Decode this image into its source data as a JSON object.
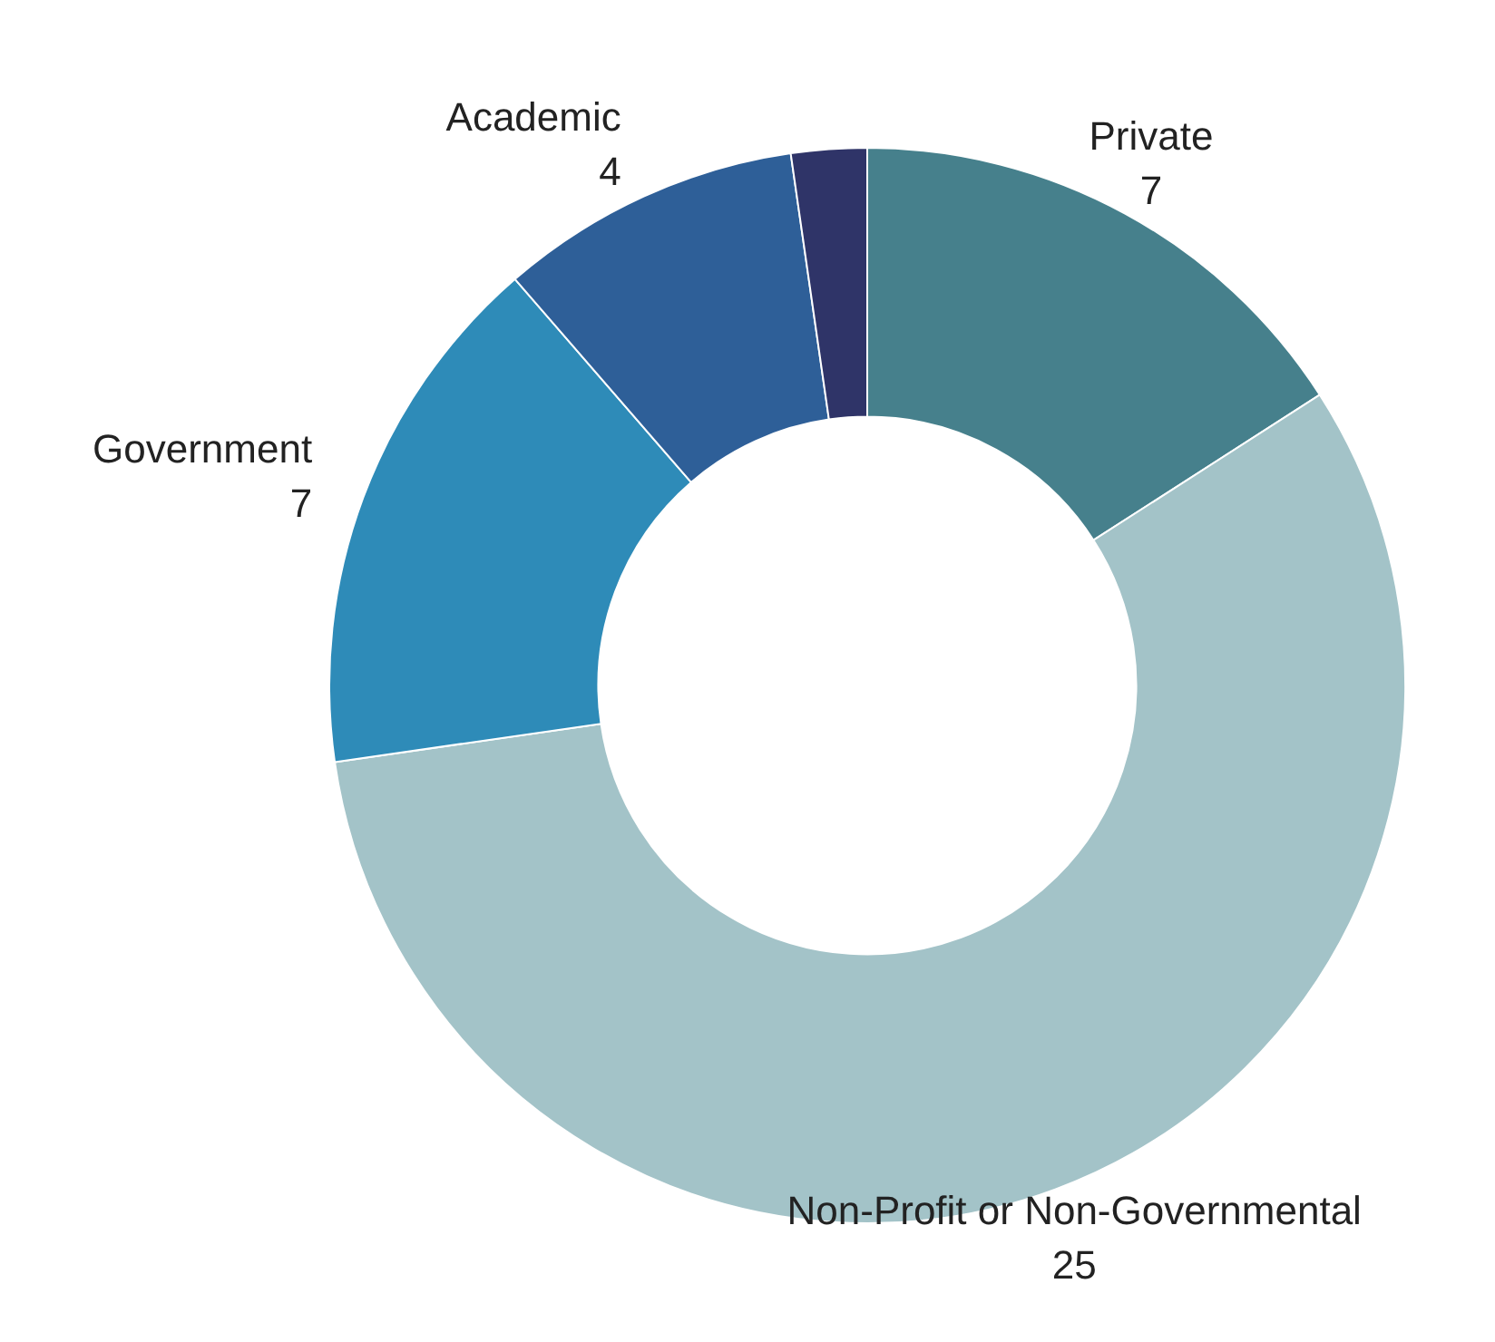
{
  "chart_data": {
    "type": "donut",
    "categories": [
      "Private",
      "Non-Profit or Non-Governmental",
      "Government",
      "Academic",
      null
    ],
    "values": [
      7,
      25,
      7,
      4,
      1
    ],
    "value_labels": [
      "7",
      "25",
      "7",
      "4",
      null
    ],
    "colors": [
      "#46808c",
      "#a3c3c8",
      "#2e8bb8",
      "#2e5f98",
      "#2f3468"
    ],
    "legend": false
  }
}
